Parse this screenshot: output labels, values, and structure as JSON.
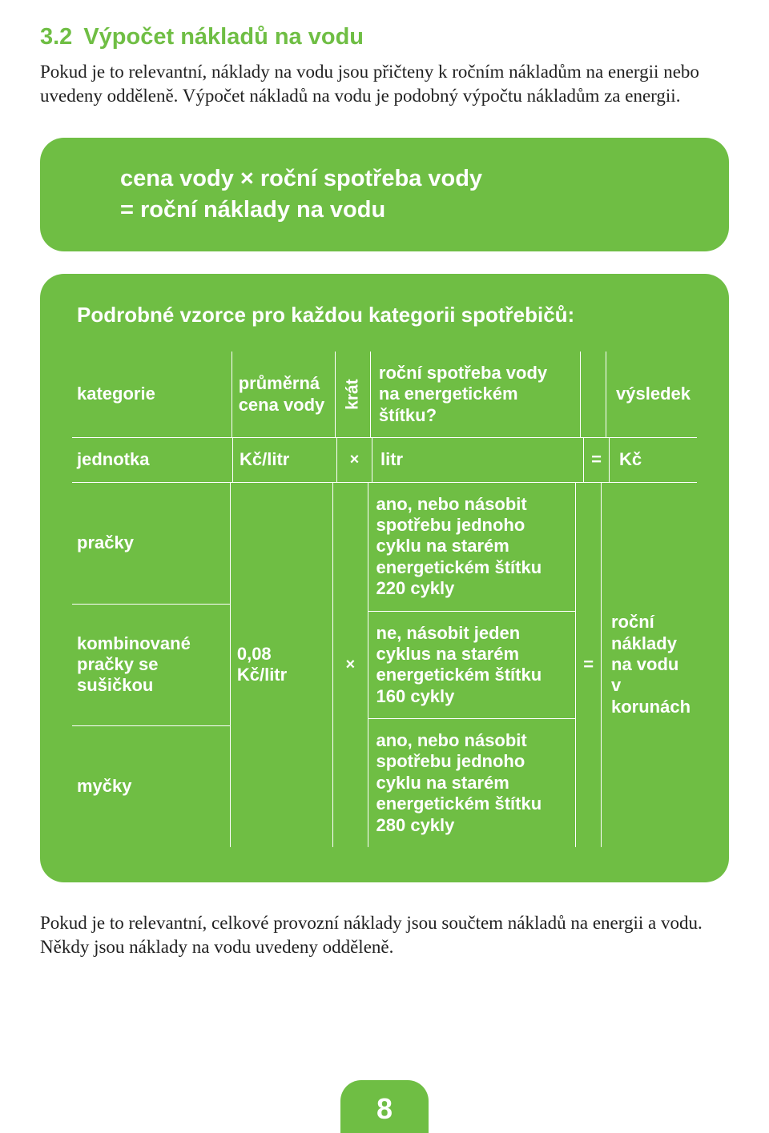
{
  "colors": {
    "accent": "#6fbe44",
    "text": "#222222",
    "white": "#ffffff"
  },
  "section": {
    "number": "3.2",
    "title": "Výpočet nákladů na vodu"
  },
  "intro": "Pokud je to relevantní, náklady na vodu jsou přičteny k ročním nákladům na energii nebo uvedeny odděleně. Výpočet nákladů na vodu je podobný výpočtu nákladům za energii.",
  "formula": {
    "line1": "cena vody × roční spotřeba vody",
    "line2": "= roční náklady na vodu"
  },
  "detail": {
    "heading": "Podrobné vzorce pro každou kategorii spotřebičů:",
    "header": {
      "c1": "kategorie",
      "c2": "průměrná cena vody",
      "c3": "krát",
      "c4": "roční spotřeba vody na energetickém štítku?",
      "c6": "výsledek"
    },
    "unit": {
      "c1": "jednotka",
      "c2": "Kč/litr",
      "c3": "×",
      "c4": "litr",
      "c5": "=",
      "c6": "Kč"
    },
    "body": {
      "categories": [
        "pračky",
        "kombinované pračky se sušičkou",
        "myčky"
      ],
      "avg_price": "0,08 Kč/litr",
      "mult": "×",
      "consumption": [
        "ano, nebo násobit spotřebu jednoho cyklu na starém energetickém štítku 220 cykly",
        "ne, násobit jeden cyklus na starém energetickém štítku 160 cykly",
        "ano, nebo násobit spotřebu jednoho cyklu na starém energetickém štítku 280 cykly"
      ],
      "eq": "=",
      "result": "roční náklady na vodu v korunách"
    }
  },
  "outro": "Pokud je to relevantní, celkové provozní náklady jsou součtem nákladů na energii a vodu. Někdy jsou náklady na vodu uvedeny odděleně.",
  "page_number": "8"
}
